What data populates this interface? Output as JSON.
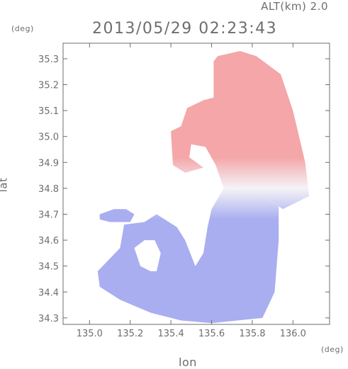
{
  "header": {
    "altitude_label": "ALT(km) 2.0",
    "timestamp": "2013/05/29 02:23:43"
  },
  "axes": {
    "y_unit": "(deg)",
    "x_unit": "(deg)",
    "y_label": "lat",
    "x_label": "lon"
  },
  "chart_data": {
    "type": "heatmap",
    "title": "2013/05/29 02:23:43",
    "subtitle": "ALT(km) 2.0",
    "xlabel": "lon",
    "ylabel": "lat",
    "x_unit": "(deg)",
    "y_unit": "(deg)",
    "xlim": [
      134.87,
      136.18
    ],
    "ylim": [
      34.275,
      35.36
    ],
    "x_ticks": [
      "135.0",
      "135.2",
      "135.4",
      "135.6",
      "135.8",
      "136.0"
    ],
    "y_ticks": [
      "34.3",
      "34.4",
      "34.5",
      "34.6",
      "34.7",
      "34.8",
      "34.9",
      "35.0",
      "35.1",
      "35.2",
      "35.3"
    ],
    "colors": {
      "positive": "#f4a6a8",
      "negative": "#a9aef0",
      "neutral": "#f5f3f6",
      "frame": "#6e6e6e"
    },
    "regions": [
      {
        "name": "northern positive (receding) area",
        "sign": "positive",
        "polygon": [
          [
            135.63,
            35.31
          ],
          [
            135.74,
            35.33
          ],
          [
            135.82,
            35.31
          ],
          [
            135.94,
            35.24
          ],
          [
            136.0,
            35.1
          ],
          [
            136.06,
            34.9
          ],
          [
            136.08,
            34.77
          ],
          [
            135.95,
            34.72
          ],
          [
            135.82,
            34.79
          ],
          [
            135.66,
            34.8
          ],
          [
            135.62,
            34.89
          ],
          [
            135.57,
            34.96
          ],
          [
            135.5,
            34.97
          ],
          [
            135.49,
            34.92
          ],
          [
            135.56,
            34.88
          ],
          [
            135.47,
            34.86
          ],
          [
            135.41,
            34.89
          ],
          [
            135.4,
            35.02
          ],
          [
            135.45,
            35.04
          ],
          [
            135.48,
            35.11
          ],
          [
            135.56,
            35.14
          ],
          [
            135.61,
            35.15
          ],
          [
            135.61,
            35.29
          ]
        ]
      },
      {
        "name": "southern negative (approaching) area",
        "sign": "negative",
        "polygon": [
          [
            135.66,
            34.8
          ],
          [
            135.82,
            34.79
          ],
          [
            135.93,
            34.73
          ],
          [
            135.93,
            34.6
          ],
          [
            135.91,
            34.4
          ],
          [
            135.85,
            34.3
          ],
          [
            135.6,
            34.28
          ],
          [
            135.45,
            34.29
          ],
          [
            135.3,
            34.32
          ],
          [
            135.15,
            34.37
          ],
          [
            135.05,
            34.42
          ],
          [
            135.04,
            34.48
          ],
          [
            135.15,
            34.57
          ],
          [
            135.17,
            34.66
          ],
          [
            135.27,
            34.67
          ],
          [
            135.33,
            34.7
          ],
          [
            135.43,
            34.65
          ],
          [
            135.47,
            34.6
          ],
          [
            135.52,
            34.5
          ],
          [
            135.56,
            34.55
          ],
          [
            135.58,
            34.65
          ],
          [
            135.6,
            34.72
          ]
        ]
      },
      {
        "name": "western negative patch",
        "sign": "negative",
        "polygon": [
          [
            135.05,
            34.7
          ],
          [
            135.12,
            34.72
          ],
          [
            135.18,
            34.72
          ],
          [
            135.22,
            34.7
          ],
          [
            135.2,
            34.67
          ],
          [
            135.1,
            34.67
          ],
          [
            135.05,
            34.68
          ]
        ]
      }
    ],
    "gaps": [
      {
        "name": "no-data hole",
        "polygon": [
          [
            135.22,
            34.57
          ],
          [
            135.27,
            34.6
          ],
          [
            135.32,
            34.6
          ],
          [
            135.35,
            34.55
          ],
          [
            135.33,
            34.48
          ],
          [
            135.3,
            34.48
          ],
          [
            135.25,
            34.5
          ]
        ]
      }
    ],
    "color_gradient": [
      {
        "lat": 34.92,
        "value": "positive"
      },
      {
        "lat": 34.8,
        "value": "neutral"
      },
      {
        "lat": 34.68,
        "value": "negative"
      }
    ]
  }
}
